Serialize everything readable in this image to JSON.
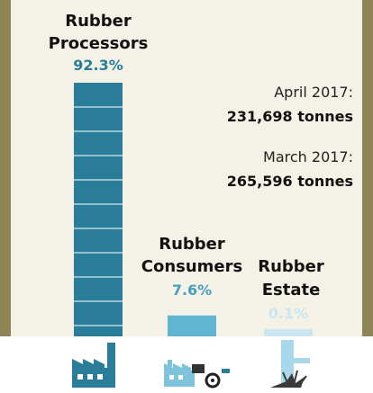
{
  "chart_data": {
    "type": "bar",
    "categories": [
      {
        "line1": "Rubber",
        "line2": "Processors",
        "name": "Rubber Processors"
      },
      {
        "line1": "Rubber",
        "line2": "Consumers",
        "name": "Rubber Consumers"
      },
      {
        "line1": "Rubber",
        "line2": "Estate",
        "name": "Rubber Estate"
      }
    ],
    "values": [
      92.3,
      7.6,
      0.1
    ],
    "value_labels": [
      "92.3%",
      "7.6%",
      "0.1%"
    ],
    "colors": [
      "#2a7d98",
      "#5fb5d2",
      "#c9e6f2"
    ],
    "label_colors": [
      "#2a7d98",
      "#4a9fc0",
      "#c9e6f2"
    ],
    "ylim": [
      0,
      100
    ]
  },
  "info": [
    {
      "month": "April 2017:",
      "value": "231,698  tonnes"
    },
    {
      "month": "March 2017:",
      "value": "265,596  tonnes"
    }
  ],
  "icons": [
    "factory-icon",
    "factory-tapping-icon",
    "latex-tap-icon"
  ],
  "colors": {
    "frame": "#8f8456",
    "panel": "#f4f2e6",
    "icon": "#2a7d98"
  }
}
